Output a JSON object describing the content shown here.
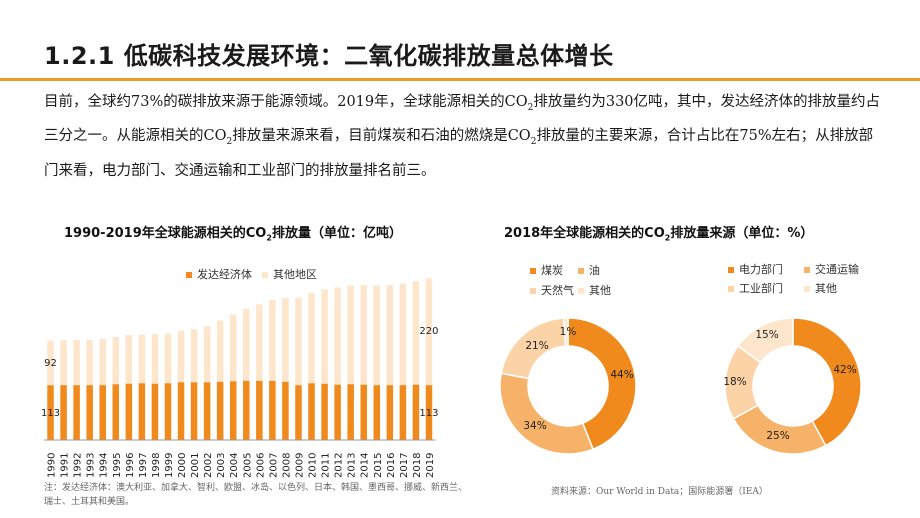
{
  "header": {
    "title": "1.2.1  低碳科技发展环境：二氧化碳排放量总体增长"
  },
  "intro": {
    "p1": "目前，全球约73%的碳排放来源于能源领域。2019年，全球能源相关的CO",
    "sub1": "2",
    "p2": "排放量约为330亿吨，其中，发达经济体的排放量约占三分之一。从能源相关的CO",
    "sub2": "2",
    "p3": "排放量来源来看，目前煤炭和石油的燃烧是CO",
    "sub3": "2",
    "p4": "排放量的主要来源，合计占比在75%左右；从排放部门来看，电力部门、交通运输和工业部门的排放量排名前三。"
  },
  "colors": {
    "accent": "#f39a2b",
    "dark_orange": "#f08a1c",
    "mid_orange": "#f6b268",
    "light_orange": "#fbd3a6",
    "pale_orange": "#fde6cc"
  },
  "chart_data": [
    {
      "type": "bar",
      "stacked": true,
      "title": "1990-2019年全球能源相关的CO",
      "title_sub": "2",
      "title_suffix": "排放量（单位：亿吨）",
      "categories": [
        "1990",
        "1991",
        "1992",
        "1993",
        "1994",
        "1995",
        "1996",
        "1997",
        "1998",
        "1999",
        "2000",
        "2001",
        "2002",
        "2003",
        "2004",
        "2005",
        "2006",
        "2007",
        "2008",
        "2009",
        "2010",
        "2011",
        "2012",
        "2013",
        "2014",
        "2015",
        "2016",
        "2017",
        "2018",
        "2019"
      ],
      "series": [
        {
          "name": "发达经济体",
          "color": "#f08a1c",
          "values": [
            113,
            113,
            113,
            113,
            113,
            115,
            116,
            117,
            116,
            117,
            119,
            119,
            119,
            120,
            121,
            122,
            122,
            122,
            120,
            113,
            117,
            116,
            114,
            115,
            114,
            113,
            113,
            113,
            114,
            113
          ]
        },
        {
          "name": "其他地区",
          "color": "#fde6cc",
          "values": [
            92,
            92,
            93,
            93,
            95,
            97,
            100,
            100,
            102,
            102,
            106,
            109,
            115,
            126,
            137,
            148,
            157,
            166,
            172,
            180,
            186,
            194,
            200,
            203,
            205,
            205,
            206,
            209,
            213,
            220
          ]
        }
      ],
      "data_labels": {
        "first_bottom": "113",
        "first_top": "92",
        "last_top": "220",
        "last_bottom": "113"
      },
      "ylim": [
        0,
        350
      ],
      "legend_position": "top"
    },
    {
      "type": "pie",
      "donut": true,
      "title": "2018年全球能源相关的CO",
      "title_sub": "2",
      "title_suffix": "排放量来源（单位：%）",
      "legend": [
        {
          "name": "煤炭",
          "color": "#f08a1c"
        },
        {
          "name": "油",
          "color": "#f6b268"
        },
        {
          "name": "天然气",
          "color": "#fbd3a6"
        },
        {
          "name": "其他",
          "color": "#fde6cc"
        }
      ],
      "donuts": [
        {
          "slices": [
            {
              "name": "煤炭",
              "value": 44,
              "label": "44%",
              "color": "#f08a1c"
            },
            {
              "name": "油",
              "value": 34,
              "label": "34%",
              "color": "#f6b268"
            },
            {
              "name": "天然气",
              "value": 21,
              "label": "21%",
              "color": "#fbd3a6"
            },
            {
              "name": "其他",
              "value": 1,
              "label": "1%",
              "color": "#fde6cc"
            }
          ]
        },
        {
          "slices": [
            {
              "name": "电力部门",
              "value": 42,
              "label": "42%",
              "color": "#f08a1c"
            },
            {
              "name": "交通运输",
              "value": 25,
              "label": "25%",
              "color": "#f6b268"
            },
            {
              "name": "工业部门",
              "value": 18,
              "label": "18%",
              "color": "#fbd3a6"
            },
            {
              "name": "其他",
              "value": 15,
              "label": "15%",
              "color": "#fde6cc"
            }
          ]
        }
      ],
      "legend2": [
        {
          "name": "电力部门",
          "color": "#f08a1c"
        },
        {
          "name": "交通运输",
          "color": "#f6b268"
        },
        {
          "name": "工业部门",
          "color": "#fbd3a6"
        },
        {
          "name": "其他",
          "color": "#fde6cc"
        }
      ]
    }
  ],
  "footer": {
    "note": "注：发达经济体：澳大利亚、加拿大、智利、欧盟、冰岛、以色列、日本、韩国、墨西哥、挪威、新西兰、瑞士、土耳其和美国。",
    "source": "资料来源：Our World in Data；国际能源署（IEA）"
  }
}
